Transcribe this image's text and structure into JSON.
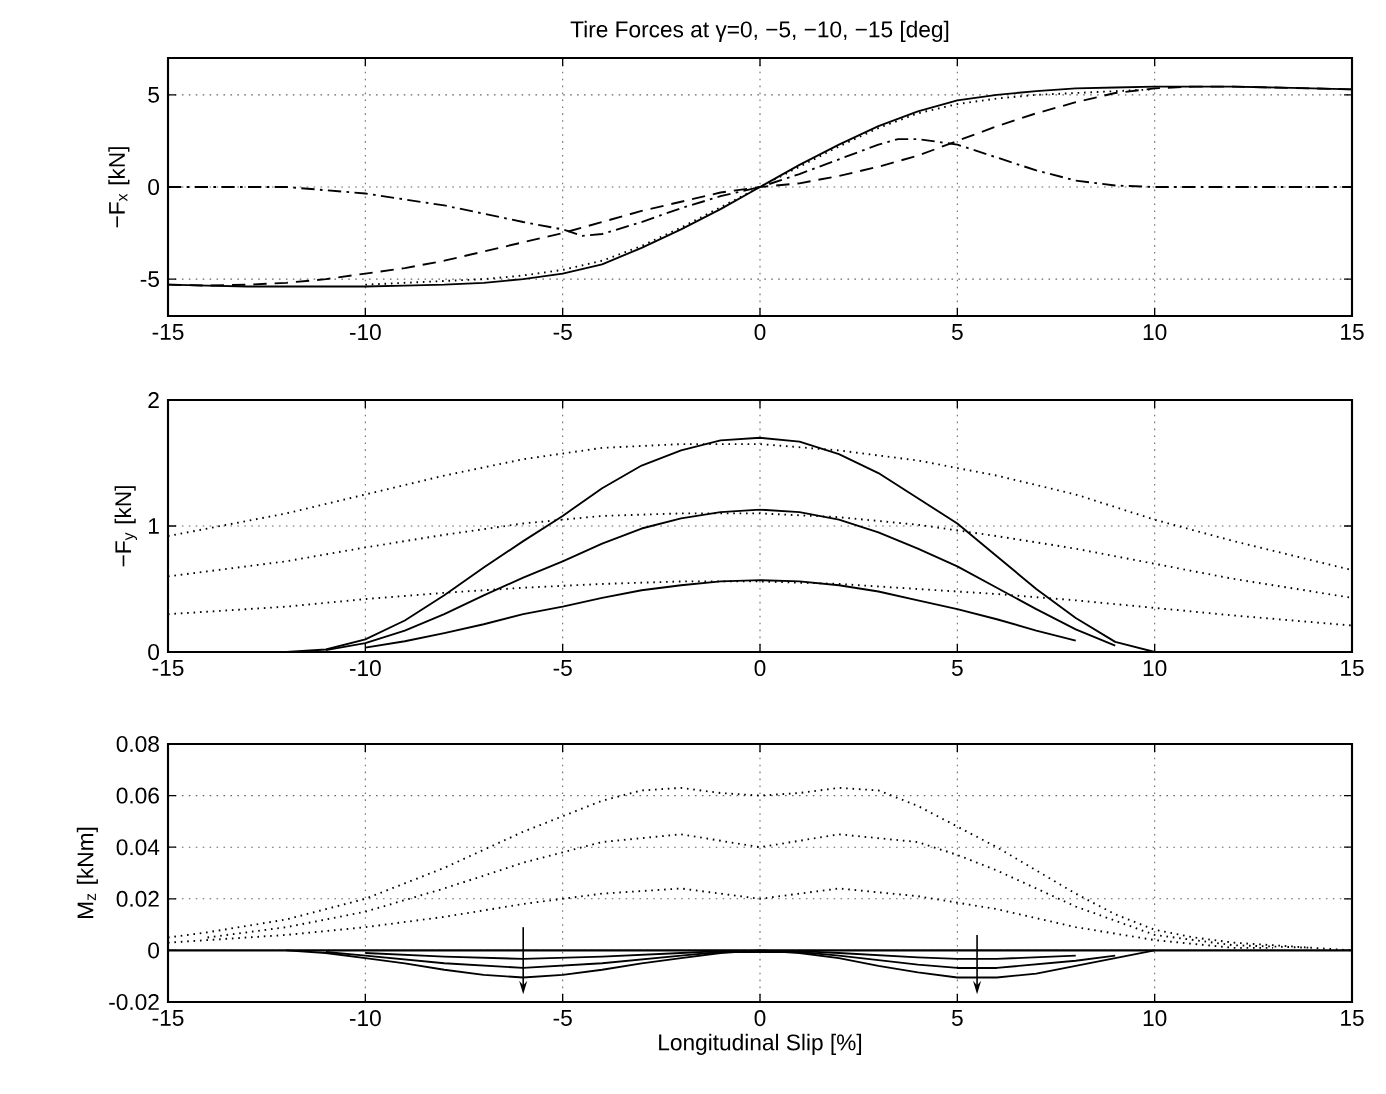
{
  "chart_data": [
    {
      "type": "line",
      "title": "Tire Forces at γ=0, −5, −10, −15 [deg]",
      "ylabel": "−F$_{x}$ [kN]",
      "xlim": [
        -15,
        15
      ],
      "ylim": [
        -7,
        7
      ],
      "xticks": [
        -15,
        -10,
        -5,
        0,
        5,
        10,
        15
      ],
      "yticks": [
        -5,
        0,
        5
      ],
      "grid": true,
      "series": [
        {
          "color": "#000000",
          "line_style": "dotted",
          "x": [
            -10,
            -9,
            -8,
            -7,
            -6,
            -5,
            -4,
            -3,
            -2,
            -1,
            0,
            1,
            2,
            3,
            4,
            5,
            6,
            7,
            8,
            9,
            10
          ],
          "values": [
            -5.3,
            -5.2,
            -5.1,
            -5.0,
            -4.8,
            -4.5,
            -4.0,
            -3.2,
            -2.2,
            -1.1,
            0,
            1.1,
            2.2,
            3.2,
            4.0,
            4.5,
            4.8,
            5.0,
            5.1,
            5.2,
            5.3
          ]
        },
        {
          "color": "#000000",
          "line_style": "solid",
          "x": [
            -15,
            -14,
            -13,
            -12,
            -11,
            -10,
            -9,
            -8,
            -7,
            -6,
            -5,
            -4,
            -3,
            -2,
            -1,
            0,
            1,
            2,
            3,
            4,
            5,
            6,
            7,
            8,
            9,
            10,
            11,
            12,
            13,
            14,
            15
          ],
          "values": [
            -5.3,
            -5.35,
            -5.4,
            -5.4,
            -5.4,
            -5.4,
            -5.35,
            -5.3,
            -5.2,
            -5.0,
            -4.7,
            -4.2,
            -3.3,
            -2.3,
            -1.2,
            0,
            1.2,
            2.3,
            3.3,
            4.1,
            4.7,
            5.0,
            5.2,
            5.35,
            5.4,
            5.45,
            5.45,
            5.45,
            5.4,
            5.35,
            5.3
          ]
        },
        {
          "color": "#000000",
          "line_style": "dashed",
          "x": [
            -15,
            -14,
            -13,
            -12,
            -11,
            -10,
            -9,
            -8,
            -7,
            -6,
            -5,
            -4,
            -3,
            -2,
            -1,
            0,
            1,
            2,
            3,
            4,
            5,
            6,
            7,
            8,
            9,
            10,
            11,
            12,
            13,
            14,
            15
          ],
          "values": [
            -5.3,
            -5.35,
            -5.3,
            -5.2,
            -5.0,
            -4.7,
            -4.4,
            -4.0,
            -3.5,
            -3.0,
            -2.5,
            -1.9,
            -1.3,
            -0.8,
            -0.3,
            0,
            0.2,
            0.6,
            1.1,
            1.7,
            2.5,
            3.3,
            4.0,
            4.6,
            5.1,
            5.35,
            5.45,
            5.45,
            5.4,
            5.35,
            5.3
          ]
        },
        {
          "color": "#000000",
          "line_style": "dashdot",
          "x": [
            -15,
            -12,
            -10,
            -8,
            -6,
            -5,
            -4.5,
            -4,
            -3,
            -2,
            -1,
            0,
            1,
            2,
            3,
            3.5,
            4,
            5,
            6,
            7,
            8,
            9,
            10,
            15
          ],
          "values": [
            0,
            0,
            -0.35,
            -1.0,
            -1.9,
            -2.3,
            -2.65,
            -2.55,
            -1.9,
            -1.15,
            -0.5,
            0,
            0.7,
            1.5,
            2.3,
            2.6,
            2.6,
            2.3,
            1.6,
            0.9,
            0.35,
            0.08,
            0,
            0
          ]
        }
      ]
    },
    {
      "type": "line",
      "ylabel": "−F$_{y}$ [kN]",
      "xlim": [
        -15,
        15
      ],
      "ylim": [
        0,
        2
      ],
      "xticks": [
        -15,
        -10,
        -5,
        0,
        5,
        10,
        15
      ],
      "yticks": [
        0,
        1,
        2
      ],
      "grid": true,
      "series": [
        {
          "color": "#000000",
          "line_style": "dotted",
          "x": [
            -15,
            -12,
            -10,
            -8,
            -6,
            -4,
            -2,
            0,
            2,
            4,
            6,
            8,
            10,
            12,
            15
          ],
          "values": [
            0.92,
            1.1,
            1.25,
            1.4,
            1.53,
            1.62,
            1.65,
            1.65,
            1.6,
            1.52,
            1.4,
            1.25,
            1.05,
            0.88,
            0.65
          ]
        },
        {
          "color": "#000000",
          "line_style": "dotted",
          "x": [
            -15,
            -12,
            -10,
            -8,
            -6,
            -4,
            -2,
            0,
            2,
            4,
            6,
            8,
            10,
            12,
            15
          ],
          "values": [
            0.6,
            0.72,
            0.83,
            0.93,
            1.02,
            1.08,
            1.1,
            1.1,
            1.07,
            1.01,
            0.92,
            0.82,
            0.7,
            0.58,
            0.43
          ]
        },
        {
          "color": "#000000",
          "line_style": "dotted",
          "x": [
            -15,
            -12,
            -10,
            -8,
            -6,
            -4,
            -2,
            0,
            2,
            4,
            6,
            8,
            10,
            12,
            15
          ],
          "values": [
            0.3,
            0.36,
            0.42,
            0.47,
            0.51,
            0.54,
            0.56,
            0.56,
            0.54,
            0.5,
            0.46,
            0.41,
            0.35,
            0.29,
            0.21
          ]
        },
        {
          "color": "#000000",
          "line_style": "solid",
          "x": [
            -12,
            -11,
            -10,
            -9,
            -8,
            -7,
            -6,
            -5,
            -4,
            -3,
            -2,
            -1,
            0,
            1,
            2,
            3,
            4,
            5,
            6,
            7,
            8,
            9,
            10
          ],
          "values": [
            0,
            0.02,
            0.1,
            0.25,
            0.45,
            0.67,
            0.88,
            1.08,
            1.3,
            1.48,
            1.6,
            1.68,
            1.7,
            1.67,
            1.57,
            1.42,
            1.22,
            1.02,
            0.76,
            0.5,
            0.27,
            0.08,
            0
          ]
        },
        {
          "color": "#000000",
          "line_style": "solid",
          "x": [
            -11,
            -10,
            -9,
            -8,
            -7,
            -6,
            -5,
            -4,
            -3,
            -2,
            -1,
            0,
            1,
            2,
            3,
            4,
            5,
            6,
            7,
            8,
            9
          ],
          "values": [
            0.015,
            0.07,
            0.17,
            0.3,
            0.45,
            0.59,
            0.72,
            0.86,
            0.98,
            1.06,
            1.11,
            1.13,
            1.11,
            1.05,
            0.95,
            0.82,
            0.68,
            0.51,
            0.34,
            0.18,
            0.05
          ]
        },
        {
          "color": "#000000",
          "line_style": "solid",
          "x": [
            -10,
            -9,
            -8,
            -7,
            -6,
            -5,
            -4,
            -3,
            -2,
            -1,
            0,
            1,
            2,
            3,
            4,
            5,
            6,
            7,
            8
          ],
          "values": [
            0.035,
            0.085,
            0.15,
            0.22,
            0.3,
            0.36,
            0.43,
            0.49,
            0.53,
            0.56,
            0.57,
            0.56,
            0.53,
            0.48,
            0.41,
            0.34,
            0.26,
            0.17,
            0.09
          ]
        }
      ]
    },
    {
      "type": "line",
      "ylabel": "M$_{z}$ [kNm]",
      "xlabel": "Longitudinal Slip [%]",
      "xlim": [
        -15,
        15
      ],
      "ylim": [
        -0.02,
        0.08
      ],
      "xticks": [
        -15,
        -10,
        -5,
        0,
        5,
        10,
        15
      ],
      "yticks": [
        -0.02,
        0,
        0.02,
        0.04,
        0.06,
        0.08
      ],
      "grid": true,
      "ref_lines": [
        {
          "axis": "y",
          "value": 0,
          "color": "#000000"
        }
      ],
      "series": [
        {
          "color": "#000000",
          "line_style": "dotted",
          "x": [
            -15,
            -14,
            -12,
            -10,
            -8,
            -6,
            -4,
            -3,
            -2,
            -1,
            0,
            1,
            2,
            3,
            4,
            5,
            6,
            7,
            8,
            9,
            10,
            11,
            12,
            13,
            15
          ],
          "values": [
            0.005,
            0.007,
            0.012,
            0.02,
            0.032,
            0.046,
            0.058,
            0.062,
            0.063,
            0.061,
            0.06,
            0.061,
            0.063,
            0.062,
            0.056,
            0.048,
            0.04,
            0.031,
            0.022,
            0.014,
            0.008,
            0.005,
            0.003,
            0.002,
            0
          ]
        },
        {
          "color": "#000000",
          "line_style": "dotted",
          "x": [
            -14,
            -12,
            -10,
            -8,
            -6,
            -4,
            -2,
            0,
            2,
            4,
            5,
            6,
            8,
            10,
            12,
            14
          ],
          "values": [
            0.005,
            0.009,
            0.015,
            0.024,
            0.034,
            0.042,
            0.045,
            0.04,
            0.045,
            0.042,
            0.037,
            0.031,
            0.017,
            0.006,
            0.002,
            0.001
          ]
        },
        {
          "color": "#000000",
          "line_style": "dotted",
          "x": [
            -15,
            -12,
            -10,
            -8,
            -6,
            -4,
            -2,
            0,
            2,
            4,
            6,
            8,
            10,
            12,
            13
          ],
          "values": [
            0.003,
            0.006,
            0.009,
            0.013,
            0.018,
            0.022,
            0.024,
            0.02,
            0.024,
            0.021,
            0.016,
            0.009,
            0.004,
            0.001,
            0.001
          ]
        },
        {
          "color": "#000000",
          "line_style": "solid",
          "x": [
            -12,
            -11,
            -10,
            -9,
            -8,
            -7,
            -6,
            -5,
            -4,
            -3,
            -2,
            -1,
            0,
            1,
            2,
            3,
            4,
            5,
            6,
            7,
            8,
            9,
            10
          ],
          "values": [
            0,
            -0.001,
            -0.003,
            -0.005,
            -0.0075,
            -0.0095,
            -0.0105,
            -0.0095,
            -0.0075,
            -0.005,
            -0.003,
            -0.001,
            0,
            -0.001,
            -0.003,
            -0.006,
            -0.0085,
            -0.0105,
            -0.0105,
            -0.009,
            -0.006,
            -0.003,
            0
          ]
        },
        {
          "color": "#000000",
          "line_style": "solid",
          "x": [
            -11,
            -10,
            -8,
            -6,
            -4,
            -2,
            -1,
            1,
            2,
            4,
            5,
            6,
            8,
            9
          ],
          "values": [
            -0.0006,
            -0.002,
            -0.005,
            -0.0068,
            -0.005,
            -0.002,
            -0.0006,
            -0.0006,
            -0.002,
            -0.0055,
            -0.0068,
            -0.0068,
            -0.004,
            -0.002
          ]
        },
        {
          "color": "#000000",
          "line_style": "solid",
          "x": [
            -10,
            -8,
            -6,
            -4,
            -2,
            -1,
            1,
            2,
            4,
            5,
            6,
            8
          ],
          "values": [
            -0.001,
            -0.0024,
            -0.0033,
            -0.0024,
            -0.001,
            -0.0003,
            -0.0003,
            -0.001,
            -0.0027,
            -0.0033,
            -0.0033,
            -0.002
          ]
        }
      ]
    }
  ]
}
